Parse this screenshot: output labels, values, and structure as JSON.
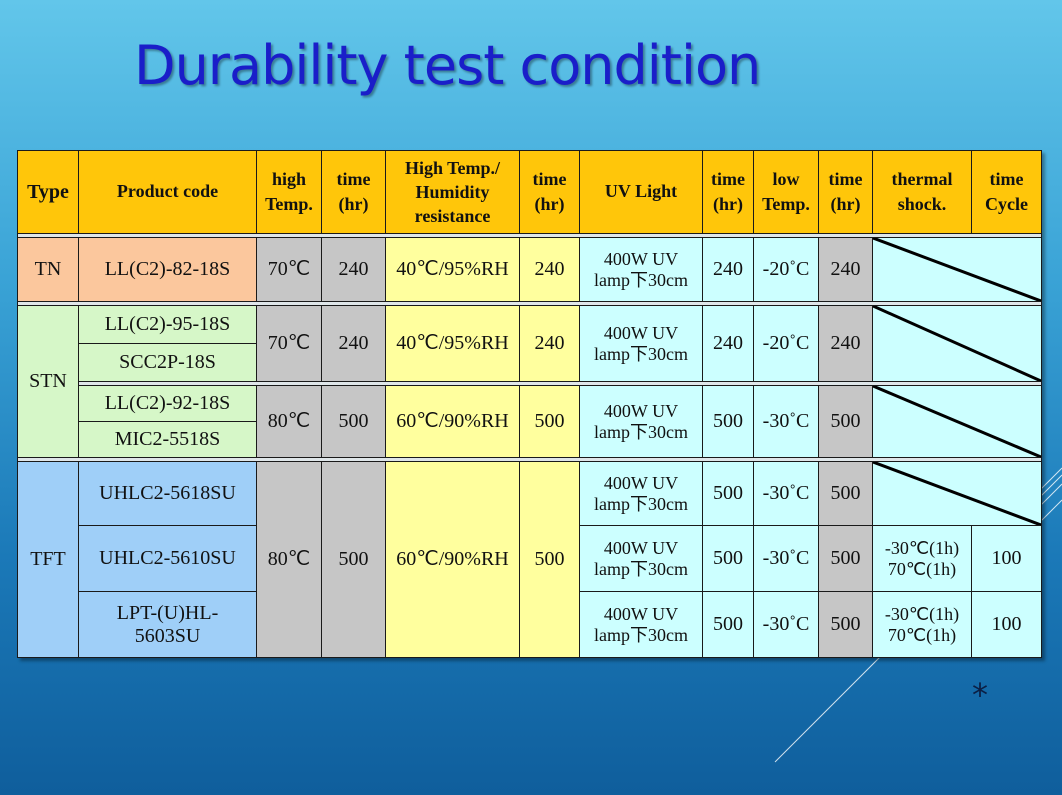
{
  "title": "Durability test condition",
  "headers": {
    "type": "Type",
    "product_code": "Product code",
    "high_temp_1": "high",
    "high_temp_2": "Temp.",
    "time_hr_1": "time",
    "time_hr_2": "(hr)",
    "htr_1": "High Temp./",
    "htr_2": "Humidity",
    "htr_3": "resistance",
    "uv_light": "UV Light",
    "low_temp_1": "low",
    "low_temp_2": "Temp.",
    "thermal_1": "thermal",
    "thermal_2": "shock.",
    "time_cycle_1": "time",
    "time_cycle_2": "Cycle"
  },
  "groups": {
    "tn": {
      "type": "TN",
      "products": [
        "LL(C2)-82-18S"
      ],
      "high_temp": "70℃",
      "high_time": "240",
      "humidity": "40℃/95%RH",
      "humidity_time": "240",
      "uv_1": "400W UV",
      "uv_2": "lamp下30cm",
      "uv_time": "240",
      "low_temp": "-20˚C",
      "low_time": "240"
    },
    "stn_a": {
      "products": [
        "LL(C2)-95-18S",
        "SCC2P-18S"
      ],
      "high_temp": "70℃",
      "high_time": "240",
      "humidity": "40℃/95%RH",
      "humidity_time": "240",
      "uv_1": "400W UV",
      "uv_2": "lamp下30cm",
      "uv_time": "240",
      "low_temp": "-20˚C",
      "low_time": "240"
    },
    "stn_b": {
      "products": [
        "LL(C2)-92-18S",
        "MIC2-5518S"
      ],
      "high_temp": "80℃",
      "high_time": "500",
      "humidity": "60℃/90%RH",
      "humidity_time": "500",
      "uv_1": "400W UV",
      "uv_2": "lamp下30cm",
      "uv_time": "500",
      "low_temp": "-30˚C",
      "low_time": "500"
    },
    "stn_type": "STN",
    "tft": {
      "type": "TFT",
      "high_temp": "80℃",
      "high_time": "500",
      "humidity": "60℃/90%RH",
      "humidity_time": "500",
      "rows": [
        {
          "product": "UHLC2-5618SU",
          "uv_1": "400W UV",
          "uv_2": "lamp下30cm",
          "uv_time": "500",
          "low_temp": "-30˚C",
          "low_time": "500"
        },
        {
          "product": "UHLC2-5610SU",
          "uv_1": "400W UV",
          "uv_2": "lamp下30cm",
          "uv_time": "500",
          "low_temp": "-30˚C",
          "low_time": "500",
          "thermal_1": "-30℃(1h)",
          "thermal_2": "70℃(1h)",
          "cycle": "100"
        },
        {
          "product_1": "LPT-(U)HL-",
          "product_2": "5603SU",
          "uv_1": "400W UV",
          "uv_2": "lamp下30cm",
          "uv_time": "500",
          "low_temp": "-30˚C",
          "low_time": "500",
          "thermal_1": "-30℃(1h)",
          "thermal_2": "70℃(1h)",
          "cycle": "100"
        }
      ]
    }
  },
  "footer_mark": "*"
}
